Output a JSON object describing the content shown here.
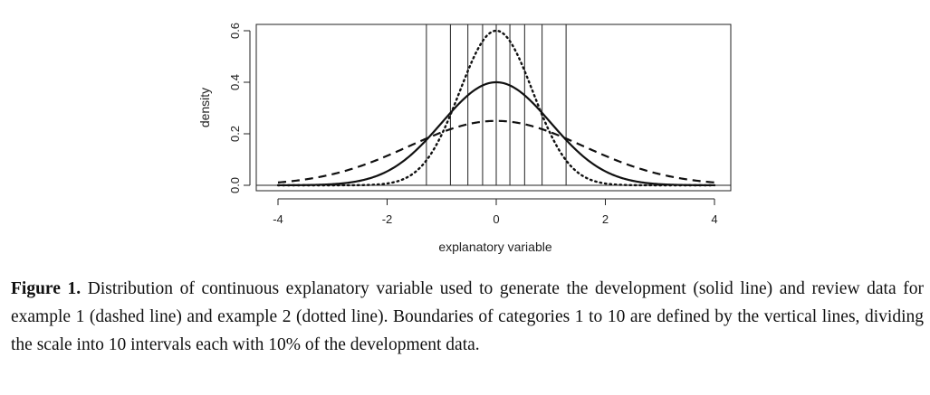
{
  "chart_data": {
    "type": "line",
    "xlabel": "explanatory variable",
    "ylabel": "density",
    "xlim": [
      -4,
      4
    ],
    "ylim": [
      0,
      0.6
    ],
    "x_ticks": [
      "-4",
      "-2",
      "0",
      "2",
      "4"
    ],
    "y_ticks": [
      "0.0",
      "0.2",
      "0.4",
      "0.6"
    ],
    "x_tick_values": [
      -4,
      -2,
      0,
      2,
      4
    ],
    "y_tick_values": [
      0.0,
      0.2,
      0.4,
      0.6
    ],
    "series": [
      {
        "style": "solid",
        "sd": 1.0,
        "peak": 0.4
      },
      {
        "style": "dashed",
        "sd": 1.6,
        "peak": 0.25
      },
      {
        "style": "dotted",
        "sd": 0.67,
        "peak": 0.6
      }
    ],
    "category_boundaries": [
      -1.28,
      -0.84,
      -0.52,
      -0.25,
      0,
      0.25,
      0.52,
      0.84,
      1.28
    ],
    "grid": false,
    "legend": "none"
  },
  "caption": {
    "label": "Figure 1.",
    "text": "Distribution of continuous explanatory variable used to generate the development (solid line) and review data for example 1 (dashed line) and example 2 (dotted line). Boundaries of categories 1 to 10 are defined by the vertical lines, dividing the scale into 10 intervals each with 10% of the development data."
  }
}
